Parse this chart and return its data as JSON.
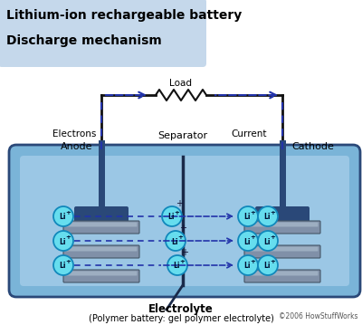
{
  "title_line1": "Lithium-ion rechargeable battery",
  "title_line2": "Discharge mechanism",
  "title_bg_color": "#c5d8eb",
  "bg_color": "#ffffff",
  "battery_bg": "#7ab4d8",
  "battery_inner_left": "#9ecae8",
  "battery_inner_right": "#b8d8f0",
  "anode_label": "Anode",
  "cathode_label": "Cathode",
  "separator_label": "Separator",
  "electrons_label": "Electrons",
  "current_label": "Current",
  "load_label": "Load",
  "electrolyte_label": "Electrolyte",
  "electrolyte_sub": "(Polymer battery: gel polymer electrolyte)",
  "copyright": "©2006 HowStuffWorks",
  "electrode_color": "#2a4878",
  "plate_top": "#aabbcc",
  "plate_mid": "#8090a8",
  "plate_bot": "#6678a0",
  "arrow_dashed": "#2233aa",
  "wire_color": "#111111",
  "sep_color": "#1a2a4a",
  "li_face": "#66ddee",
  "li_edge": "#1188bb"
}
